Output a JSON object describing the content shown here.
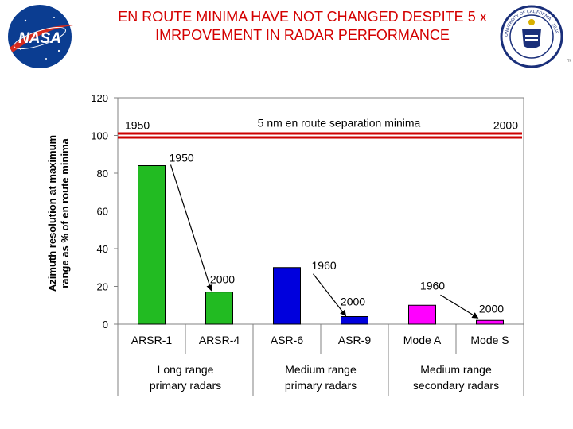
{
  "slide": {
    "title": "EN ROUTE MINIMA HAVE NOT CHANGED DESPITE 5 x IMRPOVEMENT IN RADAR PERFORMANCE",
    "left_logo": {
      "icon": "nasa-logo-icon",
      "text": "NASA",
      "color": "#0b3d91"
    },
    "right_logo": {
      "icon": "university-seal-icon",
      "text": "UNIVERSITY OF CALIFORNIA · 1868",
      "color": "#1a2f7a"
    }
  },
  "chart_data": {
    "type": "bar",
    "title": "",
    "xlabel": "",
    "ylabel": "Azimuth resolution at maximum range as % of en route minima",
    "ylim": [
      0,
      120
    ],
    "yticks": [
      0,
      20,
      40,
      60,
      80,
      100,
      120
    ],
    "grid": false,
    "categories": [
      "ARSR-1",
      "ARSR-4",
      "ASR-6",
      "ASR-9",
      "Mode A",
      "Mode S"
    ],
    "values": [
      84,
      17,
      30,
      4,
      10,
      2
    ],
    "colors": [
      "#22bb22",
      "#22bb22",
      "#0000dd",
      "#0000dd",
      "#ff00ff",
      "#ff00ff"
    ],
    "groups": [
      {
        "label": "Long range primary radars",
        "lines": [
          "Long range",
          "primary radars"
        ]
      },
      {
        "label": "Medium range primary radars",
        "lines": [
          "Medium range",
          "primary radars"
        ]
      },
      {
        "label": "Medium range secondary radars",
        "lines": [
          "Medium range",
          "secondary radars"
        ]
      }
    ],
    "reference_line": {
      "value": 100,
      "label": "5 nm en route separation minima",
      "start_label": "1950",
      "end_label": "2000",
      "color": "#cc0000"
    },
    "annotations": [
      {
        "text": "1950",
        "target": "ARSR-1"
      },
      {
        "text": "2000",
        "target": "ARSR-4"
      },
      {
        "text": "1960",
        "target": "ASR-6"
      },
      {
        "text": "2000",
        "target": "ASR-9"
      },
      {
        "text": "1960",
        "target": "Mode A"
      },
      {
        "text": "2000",
        "target": "Mode S"
      }
    ]
  }
}
